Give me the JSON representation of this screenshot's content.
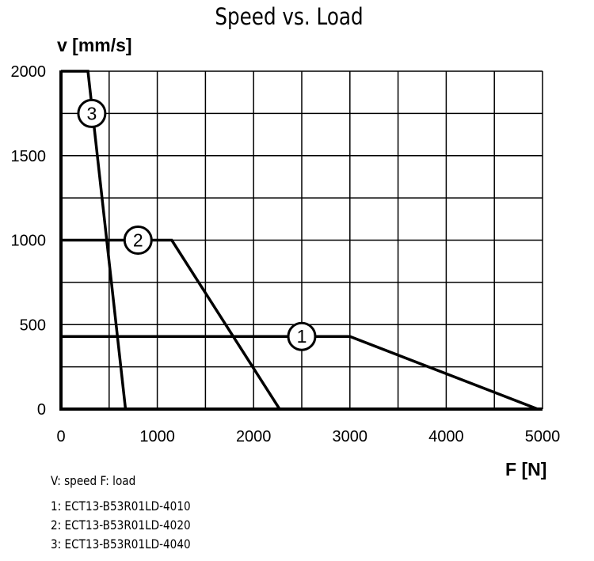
{
  "chart_data": {
    "type": "line",
    "title": "Speed vs. Load",
    "xlabel": "F [N]",
    "ylabel": "v [mm/s]",
    "xlim": [
      0,
      5000
    ],
    "ylim": [
      0,
      2000
    ],
    "x_ticks": [
      "0",
      "1000",
      "2000",
      "3000",
      "4000",
      "5000"
    ],
    "y_ticks": [
      "0",
      "500",
      "1000",
      "1500",
      "2000"
    ],
    "x_grid_step": 500,
    "y_grid_step": 250,
    "grid": true,
    "series": [
      {
        "name": "1",
        "points": [
          [
            0,
            430
          ],
          [
            3000,
            430
          ],
          [
            4950,
            0
          ]
        ],
        "marker_at": [
          2500,
          430
        ]
      },
      {
        "name": "2",
        "points": [
          [
            0,
            1000
          ],
          [
            1150,
            1000
          ],
          [
            2270,
            0
          ]
        ],
        "marker_at": [
          800,
          1000
        ]
      },
      {
        "name": "3",
        "points": [
          [
            0,
            2000
          ],
          [
            280,
            2000
          ],
          [
            670,
            0
          ]
        ],
        "marker_at": [
          320,
          1750
        ]
      }
    ],
    "annotations": {
      "legend_vars": "V: speed    F: load",
      "models": [
        "1:  ECT13-B53R01LD-4010",
        "2:  ECT13-B53R01LD-4020",
        "3:  ECT13-B53R01LD-4040"
      ]
    }
  }
}
